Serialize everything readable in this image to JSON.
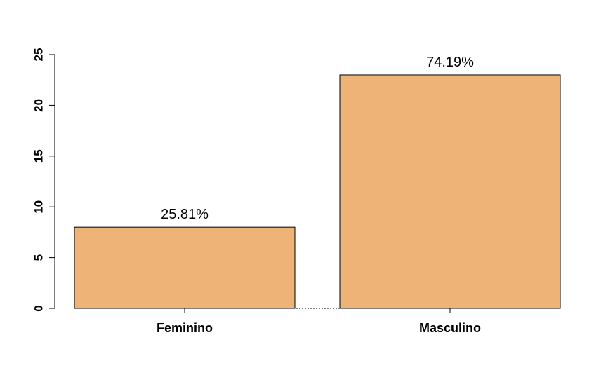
{
  "chart_data": {
    "type": "bar",
    "categories": [
      "Feminino",
      "Masculino"
    ],
    "values": [
      8,
      23
    ],
    "data_labels": [
      "25.81%",
      "74.19%"
    ],
    "title": "",
    "xlabel": "",
    "ylabel": "",
    "ylim": [
      0,
      25
    ],
    "yticks": [
      0,
      5,
      10,
      15,
      20,
      25
    ],
    "grid": false,
    "bar_color": "#EEB477",
    "bar_border_color": "#000000"
  }
}
